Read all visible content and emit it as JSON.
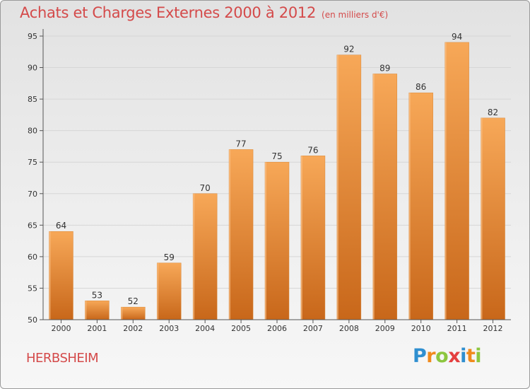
{
  "header": {
    "title": "Achats et Charges Externes 2000 à 2012",
    "subtitle": "(en milliers d'€)"
  },
  "commune": "HERBSHEIM",
  "logo": {
    "text": "Proxiti",
    "letter_colors": [
      "#2f8fd0",
      "#f08a1c",
      "#8cc63f",
      "#e43f3f",
      "#2f8fd0",
      "#f08a1c",
      "#8cc63f"
    ]
  },
  "colors": {
    "bar_top": "#f7a858",
    "bar_bottom": "#c8671a",
    "title": "#d44a4a",
    "grid": "#d6d6d6"
  },
  "chart_data": {
    "type": "bar",
    "categories": [
      "2000",
      "2001",
      "2002",
      "2003",
      "2004",
      "2005",
      "2006",
      "2007",
      "2008",
      "2009",
      "2010",
      "2011",
      "2012"
    ],
    "values": [
      64,
      53,
      52,
      59,
      70,
      77,
      75,
      76,
      92,
      89,
      86,
      94,
      82
    ],
    "data_labels": [
      "64",
      "53",
      "52",
      "59",
      "70",
      "77",
      "75",
      "76",
      "92",
      "89",
      "86",
      "94",
      "82"
    ],
    "ylim": [
      50,
      95
    ],
    "yticks": [
      50,
      55,
      60,
      65,
      70,
      75,
      80,
      85,
      90,
      95
    ],
    "grid": true,
    "title": "Achats et Charges Externes 2000 à 2012",
    "xlabel": "",
    "ylabel": ""
  }
}
